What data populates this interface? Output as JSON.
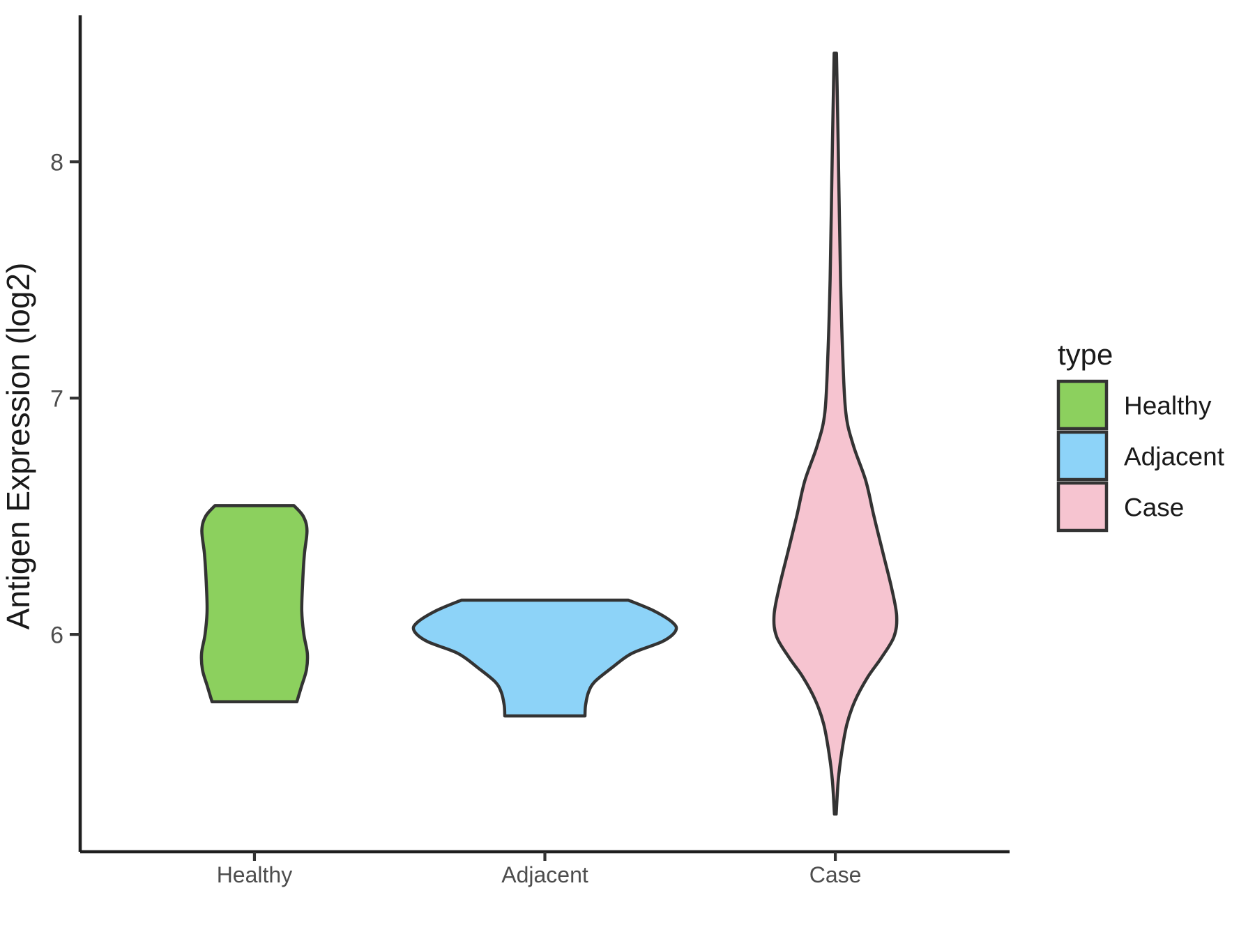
{
  "chart_data": {
    "type": "violin",
    "title": "",
    "xlabel": "",
    "ylabel": "Antigen Expression (log2)",
    "categories": [
      "Healthy",
      "Adjacent",
      "Case"
    ],
    "y_ticks": [
      6,
      7,
      8
    ],
    "y_domain": [
      5.08,
      8.62
    ],
    "x_domain": [
      0.4,
      3.6
    ],
    "grid": "off",
    "background": "#ffffff",
    "palette": {
      "axis_line": "#1f1f1f",
      "tick_mark": "#333333",
      "tick_label": "#4d4d4d",
      "axis_title": "#1a1a1a",
      "legend_text": "#1a1a1a",
      "violin_outline": "#333333"
    },
    "legend": {
      "title": "type",
      "position": "right",
      "entries": [
        {
          "label": "Healthy",
          "color": "#8CD05E"
        },
        {
          "label": "Adjacent",
          "color": "#8DD3F8"
        },
        {
          "label": "Case",
          "color": "#F6C4D0"
        }
      ]
    },
    "series": [
      {
        "name": "Healthy",
        "x": 1,
        "fill": "#8CD05E",
        "outline": "#333333",
        "value_min": 5.71,
        "value_max": 6.55,
        "profile": [
          [
            6.545,
            0.136
          ],
          [
            6.5,
            0.168
          ],
          [
            6.44,
            0.181
          ],
          [
            6.34,
            0.172
          ],
          [
            6.22,
            0.166
          ],
          [
            6.1,
            0.163
          ],
          [
            6.0,
            0.17
          ],
          [
            5.92,
            0.182
          ],
          [
            5.85,
            0.179
          ],
          [
            5.78,
            0.162
          ],
          [
            5.715,
            0.146
          ]
        ]
      },
      {
        "name": "Adjacent",
        "x": 2,
        "fill": "#8DD3F8",
        "outline": "#333333",
        "value_min": 5.65,
        "value_max": 6.15,
        "profile": [
          [
            6.145,
            0.287
          ],
          [
            6.1,
            0.375
          ],
          [
            6.05,
            0.44
          ],
          [
            6.015,
            0.45
          ],
          [
            5.97,
            0.405
          ],
          [
            5.92,
            0.3
          ],
          [
            5.86,
            0.232
          ],
          [
            5.8,
            0.172
          ],
          [
            5.755,
            0.15
          ],
          [
            5.7,
            0.14
          ],
          [
            5.655,
            0.138
          ]
        ]
      },
      {
        "name": "Case",
        "x": 3,
        "fill": "#F6C4D0",
        "outline": "#333333",
        "value_min": 5.24,
        "value_max": 8.46,
        "profile": [
          [
            8.46,
            0.004
          ],
          [
            8.2,
            0.008
          ],
          [
            8.0,
            0.011
          ],
          [
            7.77,
            0.014
          ],
          [
            7.5,
            0.018
          ],
          [
            7.2,
            0.025
          ],
          [
            6.94,
            0.036
          ],
          [
            6.8,
            0.062
          ],
          [
            6.65,
            0.105
          ],
          [
            6.5,
            0.133
          ],
          [
            6.35,
            0.163
          ],
          [
            6.2,
            0.193
          ],
          [
            6.08,
            0.211
          ],
          [
            5.99,
            0.202
          ],
          [
            5.9,
            0.158
          ],
          [
            5.82,
            0.112
          ],
          [
            5.72,
            0.068
          ],
          [
            5.62,
            0.04
          ],
          [
            5.5,
            0.022
          ],
          [
            5.38,
            0.01
          ],
          [
            5.24,
            0.003
          ]
        ]
      }
    ]
  }
}
